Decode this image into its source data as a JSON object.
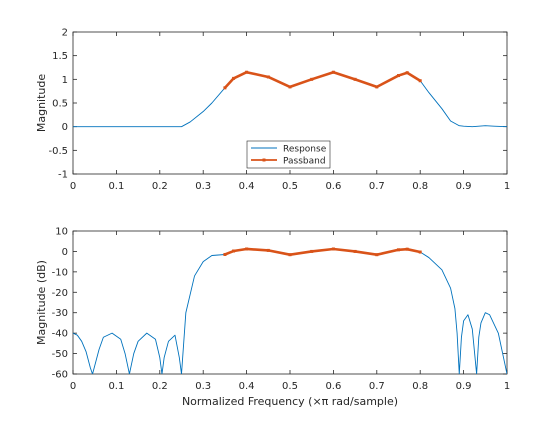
{
  "colors": {
    "response": "#0072BD",
    "passband": "#D95319",
    "axes": "#262626",
    "background": "#ffffff"
  },
  "chart_data": [
    {
      "type": "line",
      "xlabel": "",
      "ylabel": "Magnitude",
      "xlim": [
        0,
        1
      ],
      "ylim": [
        -1,
        2
      ],
      "xticks": [
        "0",
        "0.1",
        "0.2",
        "0.3",
        "0.4",
        "0.5",
        "0.6",
        "0.7",
        "0.8",
        "0.9",
        "1"
      ],
      "yticks": [
        "-1",
        "-0.5",
        "0",
        "0.5",
        "1",
        "1.5",
        "2"
      ],
      "grid": false,
      "legend": {
        "placement": "bottom-center",
        "entries": [
          "Response",
          "Passband"
        ]
      },
      "series": [
        {
          "name": "Response",
          "x": [
            0,
            0.05,
            0.1,
            0.15,
            0.2,
            0.25,
            0.27,
            0.3,
            0.32,
            0.35,
            0.37,
            0.4,
            0.45,
            0.5,
            0.55,
            0.6,
            0.65,
            0.7,
            0.75,
            0.77,
            0.8,
            0.82,
            0.85,
            0.87,
            0.89,
            0.9,
            0.92,
            0.95,
            0.97,
            1
          ],
          "y": [
            0,
            0,
            0,
            0,
            0,
            0,
            0.1,
            0.32,
            0.5,
            0.82,
            1.02,
            1.15,
            1.05,
            0.84,
            1.0,
            1.15,
            1.0,
            0.84,
            1.08,
            1.14,
            0.97,
            0.72,
            0.38,
            0.12,
            0.02,
            0.01,
            0.0,
            0.02,
            0.01,
            0.0
          ]
        },
        {
          "name": "Passband",
          "x": [
            0.35,
            0.37,
            0.4,
            0.45,
            0.5,
            0.55,
            0.6,
            0.65,
            0.7,
            0.75,
            0.77,
            0.8
          ],
          "y": [
            0.82,
            1.02,
            1.15,
            1.05,
            0.84,
            1.0,
            1.15,
            1.0,
            0.84,
            1.08,
            1.14,
            0.97
          ]
        }
      ]
    },
    {
      "type": "line",
      "xlabel": "Normalized Frequency (×π rad/sample)",
      "ylabel": "Magnitude (dB)",
      "xlim": [
        0,
        1
      ],
      "ylim": [
        -60,
        10
      ],
      "xticks": [
        "0",
        "0.1",
        "0.2",
        "0.3",
        "0.4",
        "0.5",
        "0.6",
        "0.7",
        "0.8",
        "0.9",
        "1"
      ],
      "yticks": [
        "10",
        "0",
        "-10",
        "-20",
        "-30",
        "-40",
        "-50",
        "-60"
      ],
      "grid": false,
      "series": [
        {
          "name": "Response",
          "x": [
            0,
            0.01,
            0.02,
            0.03,
            0.04,
            0.045,
            0.05,
            0.06,
            0.07,
            0.09,
            0.11,
            0.12,
            0.13,
            0.14,
            0.15,
            0.17,
            0.19,
            0.2,
            0.205,
            0.21,
            0.22,
            0.235,
            0.245,
            0.25,
            0.26,
            0.28,
            0.3,
            0.32,
            0.35,
            0.37,
            0.4,
            0.45,
            0.5,
            0.55,
            0.6,
            0.65,
            0.7,
            0.75,
            0.77,
            0.8,
            0.82,
            0.85,
            0.87,
            0.88,
            0.885,
            0.89,
            0.895,
            0.9,
            0.91,
            0.92,
            0.93,
            0.935,
            0.94,
            0.95,
            0.96,
            0.98,
            0.99,
            1
          ],
          "y": [
            -40,
            -41,
            -44,
            -49,
            -57,
            -60,
            -56,
            -48,
            -42,
            -40,
            -43,
            -50,
            -60,
            -50,
            -44,
            -40,
            -43,
            -52,
            -60,
            -52,
            -44,
            -41,
            -52,
            -60,
            -30,
            -12,
            -5,
            -2,
            -1.5,
            0.2,
            1.2,
            0.5,
            -1.6,
            0,
            1.2,
            0,
            -1.6,
            0.8,
            1.1,
            -0.3,
            -3,
            -9,
            -18,
            -28,
            -40,
            -60,
            -42,
            -34,
            -31,
            -38,
            -60,
            -42,
            -35,
            -30,
            -31,
            -40,
            -50,
            -60
          ]
        },
        {
          "name": "Passband",
          "x": [
            0.35,
            0.37,
            0.4,
            0.45,
            0.5,
            0.55,
            0.6,
            0.65,
            0.7,
            0.75,
            0.77,
            0.8
          ],
          "y": [
            -1.5,
            0.2,
            1.2,
            0.5,
            -1.6,
            0,
            1.2,
            0,
            -1.6,
            0.8,
            1.1,
            -0.3
          ]
        }
      ]
    }
  ]
}
